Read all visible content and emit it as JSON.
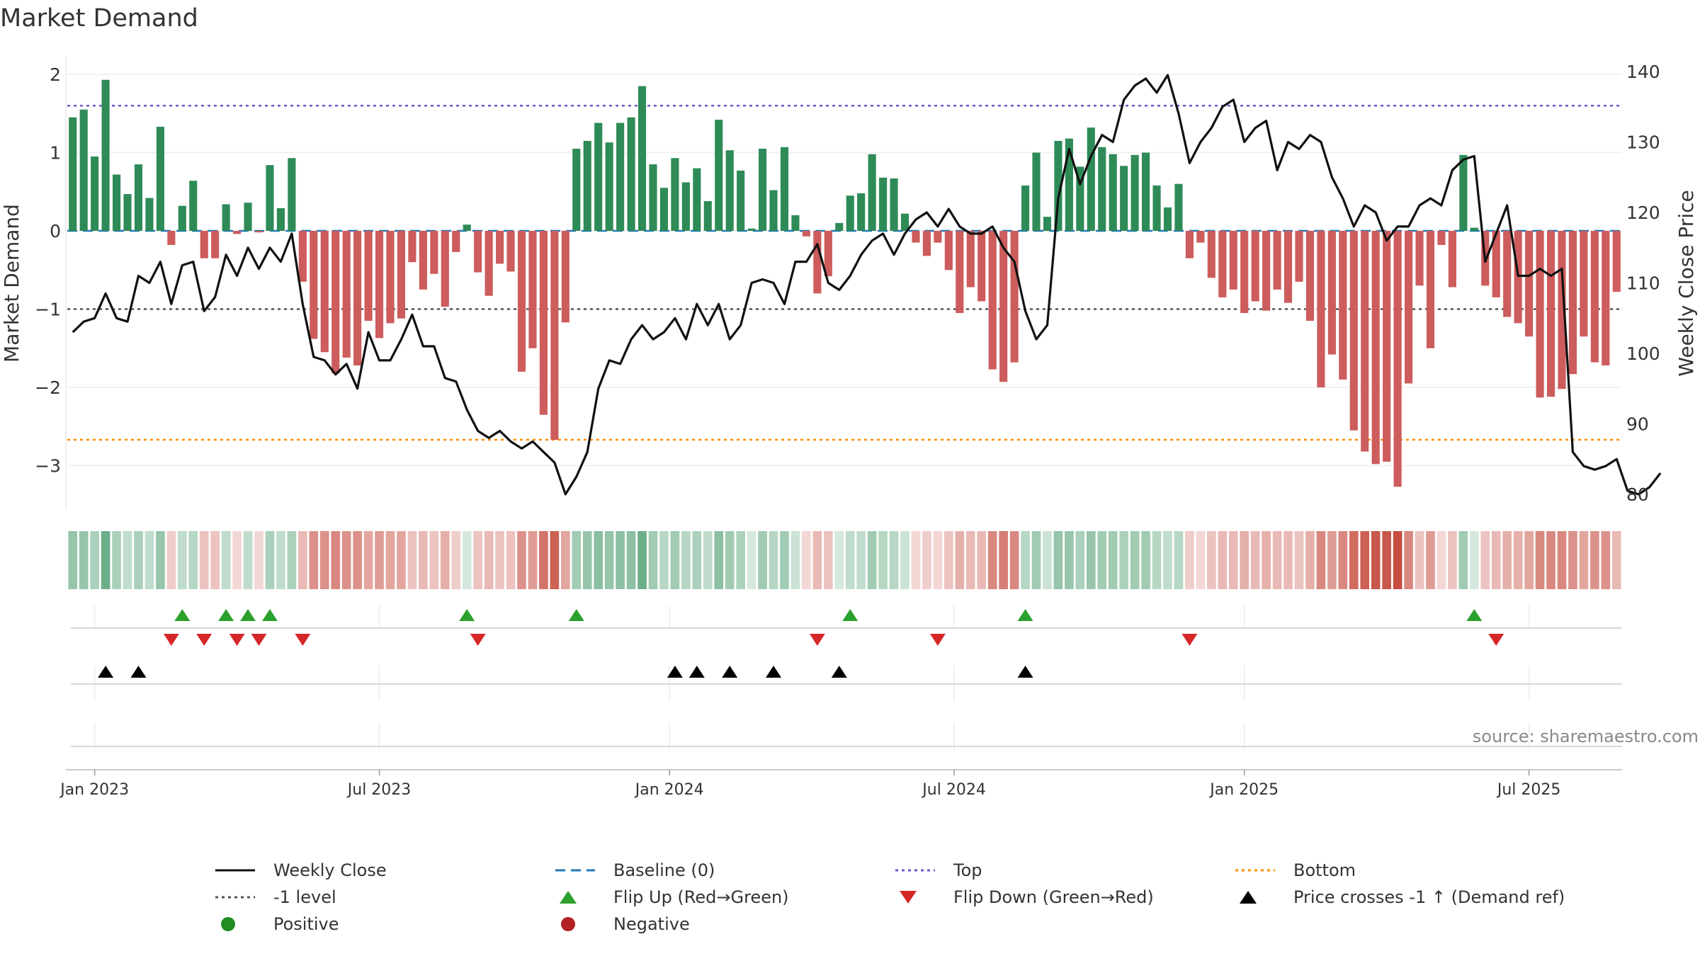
{
  "title": "Market Demand",
  "source": "source: sharemaestro.com",
  "colors": {
    "positive_bar": "#2e8b57",
    "negative_bar": "#cd5c5c",
    "price_line": "#111111",
    "baseline": "#1f77b4",
    "top": "#6a5acd",
    "bottom": "#ff8c00",
    "level": "#555555",
    "flip_up": "#2ca02c",
    "flip_down": "#d62728",
    "cross": "#000000"
  },
  "chart_data": {
    "type": "bar+line",
    "title": "Market Demand",
    "ylabel": "Market Demand",
    "y2label": "Weekly Close Price",
    "ylim": [
      -3.5,
      2.2
    ],
    "y2lim": [
      78,
      141
    ],
    "yticks": [
      2,
      1,
      0,
      -1,
      -2,
      -3
    ],
    "ytick_labels": [
      "2",
      "1",
      "0",
      "−1",
      "−2",
      "−3"
    ],
    "y2ticks": [
      140,
      130,
      120,
      110,
      100,
      90,
      80
    ],
    "x_ticks": [
      "Jan 2023",
      "Jul 2023",
      "Jan 2024",
      "Jul 2024",
      "Jan 2025",
      "Jul 2025"
    ],
    "x_tick_weeks": [
      2,
      28,
      54.5,
      80.5,
      107,
      133
    ],
    "reference_lines": {
      "baseline": 0,
      "top": 1.6,
      "bottom": -2.67,
      "level": -1
    },
    "demand": [
      1.45,
      1.55,
      0.95,
      1.93,
      0.72,
      0.47,
      0.85,
      0.42,
      1.33,
      -0.18,
      0.32,
      0.64,
      -0.35,
      -0.35,
      0.34,
      -0.04,
      0.36,
      -0.02,
      0.84,
      0.29,
      0.93,
      -0.65,
      -1.38,
      -1.55,
      -1.82,
      -1.62,
      -1.72,
      -1.15,
      -1.37,
      -1.18,
      -1.12,
      -0.4,
      -0.75,
      -0.55,
      -0.97,
      -0.27,
      0.08,
      -0.53,
      -0.83,
      -0.42,
      -0.52,
      -1.8,
      -1.5,
      -2.35,
      -2.67,
      -1.17,
      1.05,
      1.15,
      1.38,
      1.13,
      1.38,
      1.45,
      1.85,
      0.85,
      0.55,
      0.93,
      0.62,
      0.8,
      0.38,
      1.42,
      1.03,
      0.77,
      0.03,
      1.05,
      0.52,
      1.07,
      0.2,
      -0.07,
      -0.8,
      -0.58,
      0.1,
      0.45,
      0.48,
      0.98,
      0.68,
      0.67,
      0.22,
      -0.15,
      -0.32,
      -0.15,
      -0.5,
      -1.05,
      -0.72,
      -0.9,
      -1.77,
      -1.93,
      -1.68,
      0.58,
      1.0,
      0.18,
      1.15,
      1.18,
      0.82,
      1.32,
      1.07,
      0.98,
      0.83,
      0.97,
      1.0,
      0.58,
      0.3,
      0.6,
      -0.35,
      -0.15,
      -0.6,
      -0.85,
      -0.75,
      -1.05,
      -0.9,
      -1.02,
      -0.75,
      -0.92,
      -0.65,
      -1.15,
      -2.0,
      -1.58,
      -1.9,
      -2.55,
      -2.82,
      -2.98,
      -2.95,
      -3.27,
      -1.95,
      -0.7,
      -1.5,
      -0.18,
      -0.72,
      0.97,
      0.04,
      -0.7,
      -0.85,
      -1.1,
      -1.18,
      -1.35,
      -2.13,
      -2.12,
      -2.02,
      -1.83,
      -1.35,
      -1.68,
      -1.72,
      -0.78
    ],
    "price": [
      103,
      104.5,
      105,
      108.5,
      105,
      104.5,
      111,
      110,
      113,
      107,
      112.5,
      113,
      106,
      108,
      114,
      111,
      115,
      112,
      115,
      113,
      117,
      107,
      99.5,
      99,
      97,
      98.5,
      95,
      103,
      99,
      99,
      102,
      105.5,
      101,
      101,
      96.5,
      96,
      92,
      89,
      88,
      89,
      87.5,
      86.5,
      87.5,
      86,
      84.5,
      80,
      82.5,
      86,
      95,
      99,
      98.5,
      102,
      104,
      102,
      103,
      105,
      102,
      107,
      104,
      107,
      102,
      104,
      110,
      110.5,
      110,
      107,
      113,
      113,
      115.5,
      110,
      109,
      111,
      114,
      116,
      117,
      114,
      117,
      119,
      120,
      118,
      120.5,
      118,
      117,
      117,
      118,
      115,
      113,
      106,
      102,
      104,
      122,
      129,
      124,
      128,
      131,
      130,
      136,
      138,
      139,
      137,
      139.5,
      134,
      127,
      130,
      132,
      135,
      136,
      130,
      132,
      133,
      126,
      130,
      129,
      131,
      130,
      125,
      122,
      118,
      121,
      120,
      116,
      118,
      118,
      121,
      122,
      121,
      126,
      127.5,
      128,
      113,
      117,
      121,
      111,
      111,
      112,
      111,
      112,
      86,
      84,
      83.5,
      84,
      85,
      80.5,
      80,
      81,
      83
    ],
    "regime_alpha": [
      0.5,
      0.5,
      0.4,
      0.7,
      0.4,
      0.3,
      0.4,
      0.3,
      0.5,
      0.25,
      0.3,
      0.35,
      0.3,
      0.3,
      0.3,
      0.2,
      0.3,
      0.2,
      0.4,
      0.3,
      0.4,
      0.35,
      0.55,
      0.55,
      0.6,
      0.55,
      0.55,
      0.45,
      0.5,
      0.45,
      0.45,
      0.3,
      0.35,
      0.3,
      0.4,
      0.25,
      0.2,
      0.3,
      0.35,
      0.3,
      0.3,
      0.55,
      0.5,
      0.7,
      0.8,
      0.45,
      0.45,
      0.5,
      0.55,
      0.5,
      0.55,
      0.55,
      0.7,
      0.45,
      0.35,
      0.45,
      0.35,
      0.4,
      0.3,
      0.55,
      0.45,
      0.4,
      0.2,
      0.45,
      0.35,
      0.45,
      0.25,
      0.2,
      0.35,
      0.3,
      0.2,
      0.3,
      0.3,
      0.45,
      0.35,
      0.35,
      0.25,
      0.2,
      0.25,
      0.2,
      0.3,
      0.4,
      0.35,
      0.35,
      0.6,
      0.65,
      0.6,
      0.35,
      0.45,
      0.25,
      0.5,
      0.5,
      0.4,
      0.5,
      0.45,
      0.45,
      0.4,
      0.45,
      0.45,
      0.35,
      0.3,
      0.35,
      0.25,
      0.2,
      0.3,
      0.35,
      0.35,
      0.4,
      0.35,
      0.4,
      0.35,
      0.35,
      0.3,
      0.4,
      0.6,
      0.5,
      0.6,
      0.75,
      0.8,
      0.85,
      0.85,
      0.9,
      0.6,
      0.3,
      0.5,
      0.2,
      0.3,
      0.45,
      0.2,
      0.3,
      0.35,
      0.4,
      0.4,
      0.45,
      0.6,
      0.6,
      0.6,
      0.55,
      0.45,
      0.55,
      0.55,
      0.35
    ],
    "flip_up_weeks": [
      10,
      14,
      16,
      18,
      36,
      46,
      71,
      87,
      128
    ],
    "flip_down_weeks": [
      9,
      12,
      15,
      17,
      21,
      37,
      68,
      79,
      102,
      130
    ],
    "price_cross_weeks": [
      3,
      6,
      55,
      57,
      60,
      64,
      70,
      87
    ],
    "legend": [
      "Weekly Close",
      "Baseline (0)",
      "Top",
      "Bottom",
      "-1 level",
      "Flip Up (Red→Green)",
      "Flip Down (Green→Red)",
      "Price crosses -1 ↑ (Demand ref)",
      "Positive",
      "Negative"
    ]
  },
  "legend": {
    "weekly_close": "Weekly Close",
    "baseline": "Baseline (0)",
    "top": "Top",
    "bottom": "Bottom",
    "level": "-1 level",
    "flip_up": "Flip Up (Red→Green)",
    "flip_down": "Flip Down (Green→Red)",
    "price_cross": "Price crosses -1 ↑ (Demand ref)",
    "positive": "Positive",
    "negative": "Negative"
  }
}
